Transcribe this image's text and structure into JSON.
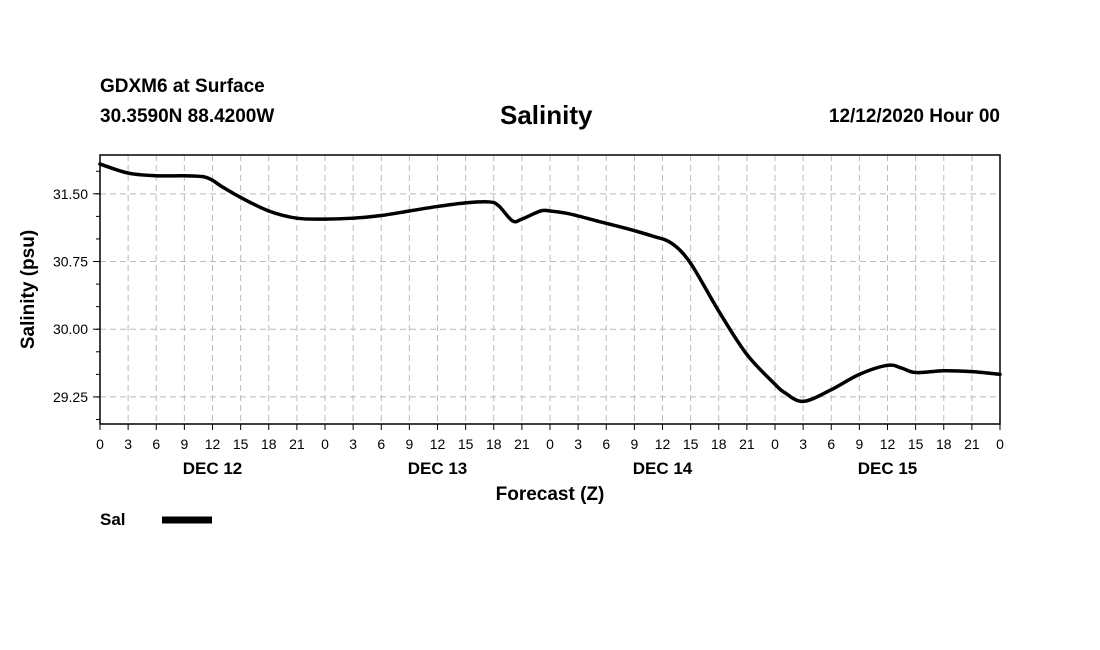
{
  "header": {
    "station": "GDXM6 at Surface",
    "coords": "30.3590N 88.4200W",
    "title": "Salinity",
    "timestamp": "12/12/2020 Hour 00"
  },
  "chart_data": {
    "type": "line",
    "title": "Salinity",
    "xlabel": "Forecast (Z)",
    "ylabel": "Salinity (psu)",
    "ylim": [
      28.95,
      31.93
    ],
    "xlim": [
      0,
      96
    ],
    "grid": true,
    "yticks": [
      29.25,
      30.0,
      30.75,
      31.5
    ],
    "ytick_labels": [
      "29.25",
      "30.00",
      "30.75",
      "31.50"
    ],
    "xtick_labels": [
      "0",
      "3",
      "6",
      "9",
      "12",
      "15",
      "18",
      "21",
      "0",
      "3",
      "6",
      "9",
      "12",
      "15",
      "18",
      "21",
      "0",
      "3",
      "6",
      "9",
      "12",
      "15",
      "18",
      "21",
      "0",
      "3",
      "6",
      "9",
      "12",
      "15",
      "18",
      "21",
      "0"
    ],
    "day_labels": [
      "DEC 12",
      "DEC 13",
      "DEC 14",
      "DEC 15"
    ],
    "day_label_hours": [
      12,
      36,
      60,
      84
    ],
    "legend_placement": "bottom-left",
    "series": [
      {
        "name": "Sal",
        "color": "#000000",
        "x": [
          0,
          3,
          6,
          9,
          11,
          12,
          13,
          15,
          18,
          21,
          24,
          27,
          30,
          33,
          36,
          39,
          41.5,
          42.5,
          44,
          45,
          47,
          48,
          50,
          53,
          56,
          59,
          61,
          63,
          66,
          69,
          72,
          73,
          75,
          78,
          81,
          84,
          85.5,
          87,
          90,
          93,
          96
        ],
        "values": [
          31.83,
          31.73,
          31.7,
          31.7,
          31.69,
          31.65,
          31.58,
          31.46,
          31.31,
          31.23,
          31.22,
          31.23,
          31.26,
          31.31,
          31.36,
          31.4,
          31.41,
          31.37,
          31.2,
          31.22,
          31.31,
          31.31,
          31.28,
          31.2,
          31.12,
          31.03,
          30.95,
          30.73,
          30.2,
          29.72,
          29.39,
          29.3,
          29.2,
          29.33,
          29.5,
          29.6,
          29.57,
          29.52,
          29.54,
          29.53,
          29.5
        ]
      }
    ]
  }
}
